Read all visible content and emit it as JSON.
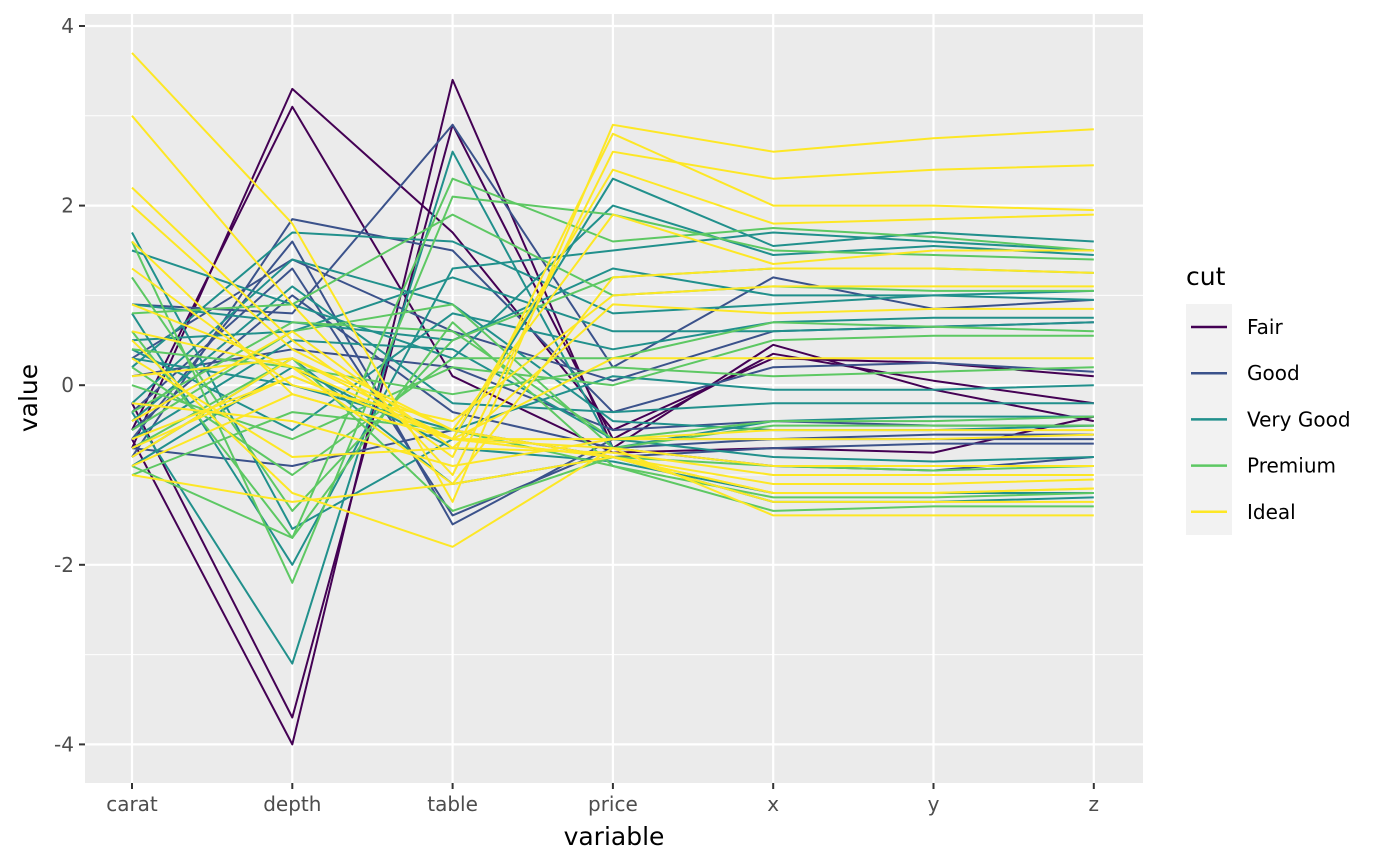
{
  "chart_data": {
    "type": "line",
    "subtype": "parallel-coordinates",
    "title": "",
    "xlabel": "variable",
    "ylabel": "value",
    "categories": [
      "carat",
      "depth",
      "table",
      "price",
      "x",
      "y",
      "z"
    ],
    "ylim": [
      -4.3,
      4.2
    ],
    "yticks": [
      -4,
      -2,
      0,
      2,
      4
    ],
    "ytick_labels": [
      "-4",
      "-2",
      "0",
      "2",
      "4"
    ],
    "grid": true,
    "legend": {
      "title": "cut",
      "position": "right",
      "entries": [
        {
          "name": "Fair",
          "color": "#440154"
        },
        {
          "name": "Good",
          "color": "#3b528b"
        },
        {
          "name": "Very Good",
          "color": "#21908c"
        },
        {
          "name": "Premium",
          "color": "#5dc863"
        },
        {
          "name": "Ideal",
          "color": "#fde725"
        }
      ]
    },
    "series": [
      {
        "cut": "Fair",
        "values": [
          -0.6,
          -4.0,
          3.4,
          -0.7,
          0.45,
          -0.05,
          -0.4
        ]
      },
      {
        "cut": "Fair",
        "values": [
          -0.2,
          -3.7,
          2.9,
          -0.6,
          0.35,
          0.05,
          -0.2
        ]
      },
      {
        "cut": "Fair",
        "values": [
          -0.5,
          3.1,
          0.1,
          -0.75,
          -0.7,
          -0.75,
          -0.35
        ]
      },
      {
        "cut": "Fair",
        "values": [
          -0.7,
          3.3,
          1.7,
          -0.5,
          0.3,
          0.25,
          0.1
        ]
      },
      {
        "cut": "Good",
        "values": [
          -0.8,
          1.85,
          1.5,
          -0.3,
          0.2,
          0.25,
          0.15
        ]
      },
      {
        "cut": "Good",
        "values": [
          -0.6,
          1.6,
          -1.55,
          -0.6,
          -0.6,
          -0.55,
          -0.55
        ]
      },
      {
        "cut": "Good",
        "values": [
          0.9,
          0.8,
          2.9,
          0.2,
          1.2,
          0.85,
          0.95
        ]
      },
      {
        "cut": "Good",
        "values": [
          -0.3,
          1.3,
          -1.45,
          -0.7,
          -0.9,
          -0.95,
          -0.8
        ]
      },
      {
        "cut": "Good",
        "values": [
          0.3,
          1.4,
          0.6,
          0.05,
          0.6,
          0.65,
          0.7
        ]
      },
      {
        "cut": "Good",
        "values": [
          -0.7,
          -0.9,
          -0.5,
          -0.8,
          -0.7,
          -0.65,
          -0.65
        ]
      },
      {
        "cut": "Good",
        "values": [
          -0.5,
          1.0,
          -0.3,
          -0.7,
          -0.6,
          -0.6,
          -0.6
        ]
      },
      {
        "cut": "Good",
        "values": [
          0.1,
          0.4,
          0.2,
          -0.5,
          -0.4,
          -0.45,
          -0.45
        ]
      },
      {
        "cut": "Very Good",
        "values": [
          -0.3,
          -3.1,
          2.6,
          -0.7,
          -0.4,
          -0.35,
          -0.35
        ]
      },
      {
        "cut": "Very Good",
        "values": [
          1.7,
          -1.6,
          -0.6,
          2.3,
          1.55,
          1.7,
          1.6
        ]
      },
      {
        "cut": "Very Good",
        "values": [
          0.8,
          -2.0,
          1.3,
          1.5,
          1.7,
          1.6,
          1.5
        ]
      },
      {
        "cut": "Very Good",
        "values": [
          0.2,
          1.7,
          1.6,
          0.8,
          0.9,
          1.0,
          1.05
        ]
      },
      {
        "cut": "Very Good",
        "values": [
          -0.4,
          1.1,
          -0.2,
          -0.3,
          -0.2,
          -0.2,
          -0.2
        ]
      },
      {
        "cut": "Very Good",
        "values": [
          0.5,
          0.6,
          1.2,
          0.6,
          0.6,
          0.65,
          0.7
        ]
      },
      {
        "cut": "Very Good",
        "values": [
          -0.8,
          0.3,
          -1.1,
          -0.8,
          -1.3,
          -1.3,
          -1.25
        ]
      },
      {
        "cut": "Very Good",
        "values": [
          1.5,
          0.9,
          0.3,
          2.0,
          1.45,
          1.55,
          1.45
        ]
      },
      {
        "cut": "Very Good",
        "values": [
          -0.6,
          0.5,
          0.4,
          -0.6,
          -0.8,
          -0.85,
          -0.8
        ]
      },
      {
        "cut": "Very Good",
        "values": [
          0.3,
          0.0,
          -0.5,
          0.1,
          -0.05,
          -0.05,
          0.0
        ]
      },
      {
        "cut": "Very Good",
        "values": [
          -0.2,
          1.4,
          0.9,
          -0.4,
          -0.5,
          -0.5,
          -0.45
        ]
      },
      {
        "cut": "Very Good",
        "values": [
          0.9,
          0.7,
          0.5,
          1.3,
          1.0,
          1.0,
          0.95
        ]
      },
      {
        "cut": "Very Good",
        "values": [
          -0.9,
          0.2,
          -0.7,
          -0.85,
          -1.2,
          -1.2,
          -1.2
        ]
      },
      {
        "cut": "Very Good",
        "values": [
          0.4,
          -0.5,
          0.8,
          0.4,
          0.7,
          0.75,
          0.75
        ]
      },
      {
        "cut": "Premium",
        "values": [
          1.6,
          -2.2,
          2.1,
          1.9,
          1.5,
          1.45,
          1.4
        ]
      },
      {
        "cut": "Premium",
        "values": [
          0.6,
          -1.7,
          2.3,
          1.6,
          1.75,
          1.65,
          1.5
        ]
      },
      {
        "cut": "Premium",
        "values": [
          -0.9,
          -1.7,
          0.7,
          -0.9,
          -1.4,
          -1.35,
          -1.35
        ]
      },
      {
        "cut": "Premium",
        "values": [
          0.2,
          -1.0,
          0.3,
          0.3,
          0.7,
          0.65,
          0.6
        ]
      },
      {
        "cut": "Premium",
        "values": [
          -0.5,
          0.6,
          0.9,
          -0.7,
          -0.45,
          -0.45,
          -0.45
        ]
      },
      {
        "cut": "Premium",
        "values": [
          1.2,
          -1.4,
          0.5,
          1.2,
          1.3,
          1.3,
          1.25
        ]
      },
      {
        "cut": "Premium",
        "values": [
          -0.7,
          0.3,
          -1.4,
          -0.8,
          -0.9,
          -0.95,
          -0.9
        ]
      },
      {
        "cut": "Premium",
        "values": [
          0.8,
          0.9,
          1.9,
          1.0,
          1.1,
          1.05,
          1.05
        ]
      },
      {
        "cut": "Premium",
        "values": [
          -1.0,
          -0.3,
          -0.5,
          -0.9,
          -1.25,
          -1.25,
          -1.2
        ]
      },
      {
        "cut": "Premium",
        "values": [
          0.4,
          0.2,
          -0.1,
          0.2,
          0.1,
          0.15,
          0.2
        ]
      },
      {
        "cut": "Premium",
        "values": [
          -0.3,
          0.7,
          0.6,
          -0.6,
          -0.4,
          -0.4,
          -0.35
        ]
      },
      {
        "cut": "Premium",
        "values": [
          0.0,
          -0.6,
          0.2,
          0.0,
          0.5,
          0.55,
          0.55
        ]
      },
      {
        "cut": "Ideal",
        "values": [
          3.7,
          1.8,
          -1.3,
          2.9,
          2.6,
          2.75,
          2.85
        ]
      },
      {
        "cut": "Ideal",
        "values": [
          3.0,
          0.9,
          -1.0,
          2.6,
          2.3,
          2.4,
          2.45
        ]
      },
      {
        "cut": "Ideal",
        "values": [
          2.2,
          0.5,
          -0.8,
          2.8,
          2.0,
          2.0,
          1.95
        ]
      },
      {
        "cut": "Ideal",
        "values": [
          2.0,
          0.4,
          -0.5,
          1.9,
          1.35,
          1.5,
          1.5
        ]
      },
      {
        "cut": "Ideal",
        "values": [
          1.6,
          -0.1,
          -0.6,
          2.4,
          1.8,
          1.85,
          1.9
        ]
      },
      {
        "cut": "Ideal",
        "values": [
          0.9,
          0.2,
          -1.1,
          1.2,
          1.3,
          1.3,
          1.25
        ]
      },
      {
        "cut": "Ideal",
        "values": [
          1.3,
          0.0,
          -0.4,
          1.0,
          1.1,
          1.1,
          1.1
        ]
      },
      {
        "cut": "Ideal",
        "values": [
          0.5,
          -1.2,
          -1.8,
          -0.7,
          -1.45,
          -1.45,
          -1.45
        ]
      },
      {
        "cut": "Ideal",
        "values": [
          -1.0,
          -1.3,
          -1.1,
          -0.8,
          -1.3,
          -1.3,
          -1.3
        ]
      },
      {
        "cut": "Ideal",
        "values": [
          -0.8,
          0.3,
          -0.5,
          -0.8,
          -1.2,
          -1.2,
          -1.15
        ]
      },
      {
        "cut": "Ideal",
        "values": [
          -0.9,
          -0.1,
          -0.6,
          -0.8,
          -1.1,
          -1.1,
          -1.05
        ]
      },
      {
        "cut": "Ideal",
        "values": [
          0.1,
          0.3,
          -0.6,
          -0.6,
          -0.5,
          -0.5,
          -0.5
        ]
      },
      {
        "cut": "Ideal",
        "values": [
          -0.6,
          0.1,
          -0.6,
          -0.7,
          -0.9,
          -0.9,
          -0.9
        ]
      },
      {
        "cut": "Ideal",
        "values": [
          0.3,
          -0.8,
          -0.7,
          0.9,
          0.8,
          0.85,
          0.85
        ]
      },
      {
        "cut": "Ideal",
        "values": [
          -0.4,
          0.6,
          -0.7,
          -0.75,
          -1.0,
          -1.0,
          -1.0
        ]
      },
      {
        "cut": "Ideal",
        "values": [
          0.6,
          0.2,
          -0.6,
          0.3,
          0.3,
          0.3,
          0.3
        ]
      },
      {
        "cut": "Ideal",
        "values": [
          -0.2,
          -0.4,
          -0.9,
          -0.6,
          -0.6,
          -0.6,
          -0.55
        ]
      },
      {
        "cut": "Ideal",
        "values": [
          -0.7,
          0.1,
          -0.6,
          -0.8,
          -1.2,
          -1.2,
          -1.15
        ]
      }
    ]
  }
}
